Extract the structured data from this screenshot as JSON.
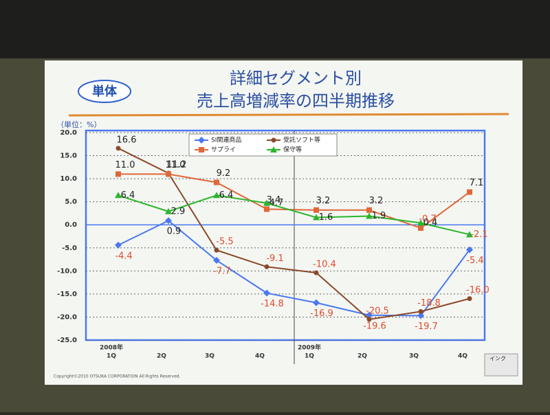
{
  "badge": "単体",
  "copyright": "Copyright©2010 OTSUKA CORPORATION All Rights Reserved.",
  "toolbar_label": "インク",
  "chart_data": {
    "type": "line",
    "title": [
      "詳細セグメント別",
      "売上高増減率の四半期推移"
    ],
    "y_unit": "（単位：%）",
    "categories": [
      "1Q",
      "2Q",
      "3Q",
      "4Q",
      "1Q",
      "2Q",
      "3Q",
      "4Q"
    ],
    "years": [
      "2008年",
      "2009年"
    ],
    "ylim": [
      -25,
      20
    ],
    "yticks": [
      {
        "value": 20,
        "label": "20.0"
      },
      {
        "value": 15,
        "label": "15.0"
      },
      {
        "value": 10,
        "label": "10.0"
      },
      {
        "value": 5,
        "label": "5.0"
      },
      {
        "value": 0,
        "label": "0.0"
      },
      {
        "value": -5,
        "label": "-5.0"
      },
      {
        "value": -10,
        "label": "-10.0"
      },
      {
        "value": -15,
        "label": "-15.0"
      },
      {
        "value": -20,
        "label": "-20.0"
      },
      {
        "value": -25,
        "label": "-25.0"
      }
    ],
    "grid": true,
    "series": [
      {
        "name": "SI関連商品",
        "color": "#4a78f0",
        "marker": "diamond",
        "values": [
          -4.4,
          0.9,
          -7.7,
          -14.8,
          -16.9,
          -19.6,
          -19.7,
          -5.4
        ],
        "value_labels": [
          "-4.4",
          "0.9",
          "-7.7",
          "-14.8",
          "-16.9",
          "-19.6",
          "-19.7",
          "-5.4"
        ]
      },
      {
        "name": "受託ソフト等",
        "color": "#8b4a2b",
        "marker": "circle",
        "values": [
          16.6,
          11.2,
          -5.5,
          -9.1,
          -10.4,
          -20.5,
          -18.8,
          -16.0
        ],
        "value_labels": [
          "16.6",
          "11.2",
          "-5.5",
          "-9.1",
          "-10.4",
          "-20.5",
          "-18.8",
          "-16.0"
        ]
      },
      {
        "name": "サプライ",
        "color": "#e0673a",
        "marker": "square",
        "values": [
          11.0,
          11.0,
          9.2,
          3.4,
          3.2,
          3.2,
          -0.7,
          7.1
        ],
        "value_labels": [
          "11.0",
          "11.0",
          "9.2",
          "3.4",
          "3.2",
          "3.2",
          "-0.7",
          "7.1"
        ]
      },
      {
        "name": "保守等",
        "color": "#2ab52a",
        "marker": "triangle",
        "values": [
          6.4,
          2.9,
          6.4,
          4.7,
          1.6,
          1.9,
          0.4,
          -2.1
        ],
        "value_labels": [
          "6.4",
          "2.9",
          "6.4",
          "4.7",
          "1.6",
          "1.9",
          "0.4",
          "-2.1"
        ]
      }
    ]
  }
}
